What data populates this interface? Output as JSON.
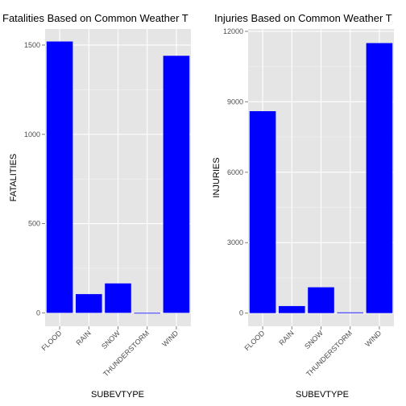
{
  "chart_data": [
    {
      "type": "bar",
      "title": "Fatalities Based on Common Weather T",
      "xlabel": "SUBEVTYPE",
      "ylabel": "FATALITIES",
      "categories": [
        "FLOOD",
        "RAIN",
        "SNOW",
        "THUNDERSTORM",
        "WIND"
      ],
      "values": [
        1520,
        105,
        165,
        0,
        1440
      ],
      "ylim": [
        -75,
        1590
      ],
      "yticks": [
        0,
        500,
        1000,
        1500
      ],
      "ytick_labels": [
        "0",
        "500",
        "1000",
        "1500"
      ],
      "bar_color": "#0000ff",
      "panel_bg": "#e5e5e5",
      "grid": true
    },
    {
      "type": "bar",
      "title": "Injuries Based on Common Weather T",
      "xlabel": "SUBEVTYPE",
      "ylabel": "INJURIES",
      "categories": [
        "FLOOD",
        "RAIN",
        "SNOW",
        "THUNDERSTORM",
        "WIND"
      ],
      "values": [
        8600,
        300,
        1100,
        30,
        11500
      ],
      "ylim": [
        -560,
        12100
      ],
      "yticks": [
        0,
        3000,
        6000,
        9000,
        12000
      ],
      "ytick_labels": [
        "0",
        "3000",
        "6000",
        "9000",
        "12000"
      ],
      "bar_color": "#0000ff",
      "panel_bg": "#e5e5e5",
      "grid": true
    }
  ]
}
